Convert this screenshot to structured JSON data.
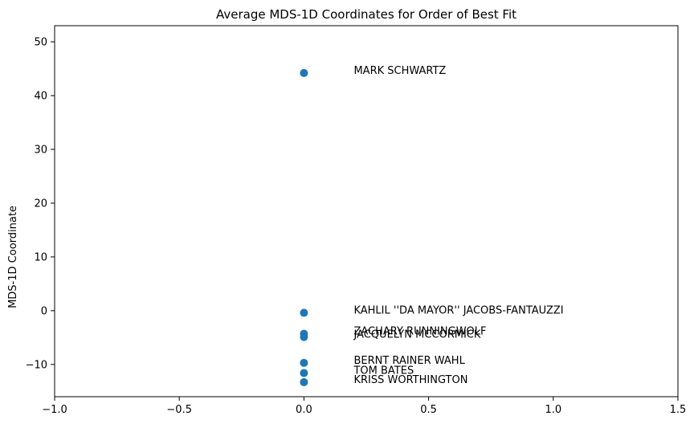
{
  "chart_data": {
    "type": "scatter",
    "title": "Average MDS-1D Coordinates for Order of Best Fit",
    "xlabel": "",
    "ylabel": "MDS-1D Coordinate",
    "xlim": [
      -1.0,
      1.5
    ],
    "ylim": [
      -16,
      53
    ],
    "xticks": [
      {
        "value": -1.0,
        "label": "−1.0"
      },
      {
        "value": -0.5,
        "label": "−0.5"
      },
      {
        "value": 0.0,
        "label": "0.0"
      },
      {
        "value": 0.5,
        "label": "0.5"
      },
      {
        "value": 1.0,
        "label": "1.0"
      },
      {
        "value": 1.5,
        "label": "1.5"
      }
    ],
    "yticks": [
      {
        "value": -10,
        "label": "−10"
      },
      {
        "value": 0,
        "label": "0"
      },
      {
        "value": 10,
        "label": "10"
      },
      {
        "value": 20,
        "label": "20"
      },
      {
        "value": 30,
        "label": "30"
      },
      {
        "value": 40,
        "label": "40"
      },
      {
        "value": 50,
        "label": "50"
      }
    ],
    "grid": false,
    "marker_color": "#1f77b4",
    "label_offset_x": 0.2,
    "points": [
      {
        "name": "MARK SCHWARTZ",
        "x": 0.0,
        "y": 44.2,
        "label_y": 44.2
      },
      {
        "name": "KAHLIL ''DA MAYOR'' JACOBS-FANTAUZZI",
        "x": 0.0,
        "y": -0.4,
        "label_y": -0.4
      },
      {
        "name": "ZACHARY RUNNINGWOLF",
        "x": 0.0,
        "y": -4.3,
        "label_y": -4.3
      },
      {
        "name": "JACQUELYN MCCORMICK",
        "x": 0.0,
        "y": -4.9,
        "label_y": -4.9
      },
      {
        "name": "BERNT RAINER WAHL",
        "x": 0.0,
        "y": -9.7,
        "label_y": -9.7
      },
      {
        "name": "TOM BATES",
        "x": 0.0,
        "y": -11.6,
        "label_y": -11.6
      },
      {
        "name": "KRISS WORTHINGTON",
        "x": 0.0,
        "y": -13.3,
        "label_y": -13.3
      }
    ]
  }
}
